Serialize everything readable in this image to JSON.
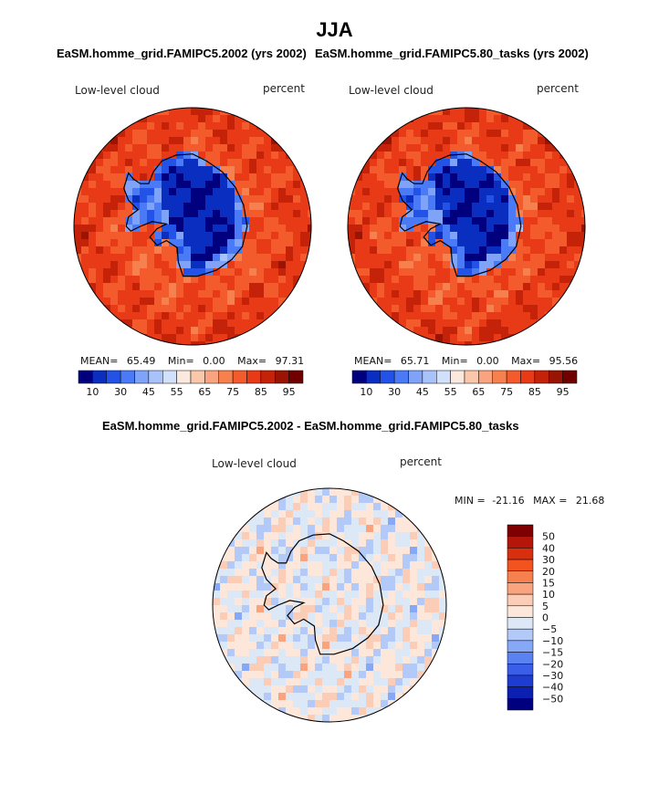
{
  "page": {
    "title": "JJA"
  },
  "chart_data": [
    {
      "type": "heatmap",
      "projection": "south-polar-stereographic",
      "title": "EaSM.homme_grid.FAMIPC5.2002 (yrs 2002)",
      "variable": "Low-level cloud",
      "units": "percent",
      "stats": {
        "mean_label": "MEAN=",
        "mean": "65.49",
        "min_label": "Min=",
        "min": "0.00",
        "max_label": "Max=",
        "max": "97.31"
      },
      "colorbar": {
        "levels": [
          "10",
          "30",
          "45",
          "55",
          "65",
          "75",
          "85",
          "95"
        ],
        "colors": [
          "#00007f",
          "#0a2fc0",
          "#2353e6",
          "#4a7af5",
          "#7fa3f9",
          "#a8c3fb",
          "#d2e1fb",
          "#fbe9dd",
          "#fbc7aa",
          "#f9a47f",
          "#f7804f",
          "#f35b2c",
          "#e83a17",
          "#c5220a",
          "#9a1404",
          "#700000"
        ]
      }
    },
    {
      "type": "heatmap",
      "projection": "south-polar-stereographic",
      "title": "EaSM.homme_grid.FAMIPC5.80_tasks (yrs 2002)",
      "variable": "Low-level cloud",
      "units": "percent",
      "stats": {
        "mean_label": "MEAN=",
        "mean": "65.71",
        "min_label": "Min=",
        "min": "0.00",
        "max_label": "Max=",
        "max": "95.56"
      },
      "colorbar": {
        "levels": [
          "10",
          "30",
          "45",
          "55",
          "65",
          "75",
          "85",
          "95"
        ],
        "colors": [
          "#00007f",
          "#0a2fc0",
          "#2353e6",
          "#4a7af5",
          "#7fa3f9",
          "#a8c3fb",
          "#d2e1fb",
          "#fbe9dd",
          "#fbc7aa",
          "#f9a47f",
          "#f7804f",
          "#f35b2c",
          "#e83a17",
          "#c5220a",
          "#9a1404",
          "#700000"
        ]
      }
    },
    {
      "type": "heatmap",
      "projection": "south-polar-stereographic",
      "title": "EaSM.homme_grid.FAMIPC5.2002 - EaSM.homme_grid.FAMIPC5.80_tasks",
      "variable": "Low-level cloud",
      "units": "percent",
      "stats": {
        "min_label": "MIN =",
        "min": "-21.16",
        "max_label": "MAX =",
        "max": "21.68"
      },
      "colorbar": {
        "levels": [
          "50",
          "40",
          "30",
          "20",
          "15",
          "10",
          "5",
          "0",
          "−5",
          "−10",
          "−15",
          "−20",
          "−30",
          "−40",
          "−50"
        ],
        "colors": [
          "#7f0000",
          "#b5160a",
          "#d8300f",
          "#f2531f",
          "#f7804f",
          "#f9a47f",
          "#fbcdb6",
          "#fde7da",
          "#dde8f6",
          "#b3c9f7",
          "#87a8f6",
          "#5a82f0",
          "#3a5ee8",
          "#1e3cd0",
          "#0b1fb0",
          "#00007f"
        ]
      }
    }
  ]
}
